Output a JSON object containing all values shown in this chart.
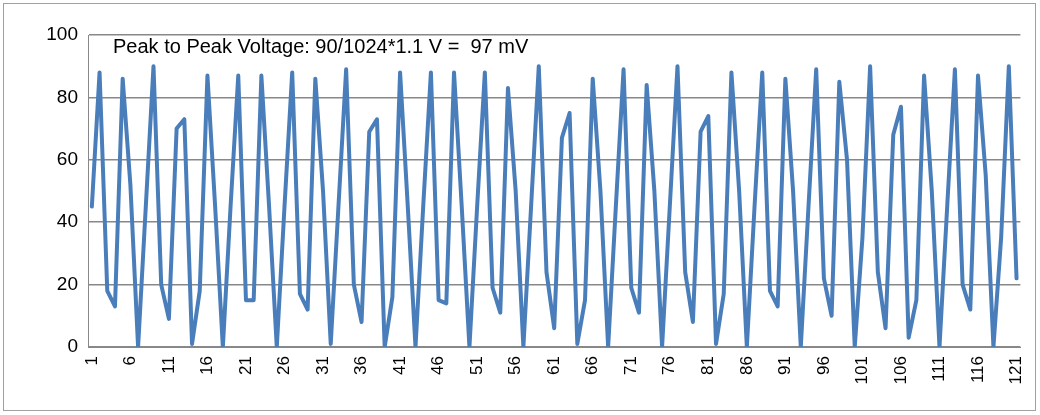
{
  "chart_data": {
    "type": "line",
    "annotations": [
      "Peak to Peak Voltage: 90/1024*1.1 V =  97 mV"
    ],
    "categories": [
      "1",
      null,
      null,
      null,
      null,
      "6",
      null,
      null,
      null,
      null,
      "11",
      null,
      null,
      null,
      null,
      "16",
      null,
      null,
      null,
      null,
      "21",
      null,
      null,
      null,
      null,
      "26",
      null,
      null,
      null,
      null,
      "31",
      null,
      null,
      null,
      null,
      "36",
      null,
      null,
      null,
      null,
      "41",
      null,
      null,
      null,
      null,
      "46",
      null,
      null,
      null,
      null,
      "51",
      null,
      null,
      null,
      null,
      "56",
      null,
      null,
      null,
      null,
      "61",
      null,
      null,
      null,
      null,
      "66",
      null,
      null,
      null,
      null,
      "71",
      null,
      null,
      null,
      null,
      "76",
      null,
      null,
      null,
      null,
      "81",
      null,
      null,
      null,
      null,
      "86",
      null,
      null,
      null,
      null,
      "91",
      null,
      null,
      null,
      null,
      "96",
      null,
      null,
      null,
      null,
      "101",
      null,
      null,
      null,
      null,
      "106",
      null,
      null,
      null,
      null,
      "111",
      null,
      null,
      null,
      null,
      "116",
      null,
      null,
      null,
      null,
      "121"
    ],
    "series": [
      {
        "color": "#4a7ebb",
        "values": [
          45,
          88,
          18,
          13,
          86,
          52,
          0,
          45,
          90,
          20,
          9,
          70,
          73,
          1,
          18,
          87,
          45,
          0,
          45,
          87,
          15,
          15,
          87,
          45,
          0,
          45,
          88,
          17,
          12,
          86,
          50,
          1,
          45,
          89,
          20,
          8,
          69,
          73,
          0,
          16,
          88,
          45,
          0,
          45,
          88,
          15,
          14,
          88,
          45,
          0,
          45,
          88,
          19,
          11,
          83,
          50,
          0,
          45,
          90,
          24,
          6,
          67,
          75,
          1,
          15,
          86,
          50,
          0,
          45,
          89,
          19,
          11,
          84,
          50,
          0,
          45,
          90,
          24,
          8,
          69,
          74,
          1,
          17,
          88,
          50,
          0,
          45,
          88,
          18,
          13,
          86,
          50,
          0,
          45,
          89,
          22,
          10,
          85,
          60,
          0,
          35,
          90,
          24,
          6,
          68,
          77,
          3,
          15,
          87,
          50,
          0,
          45,
          89,
          20,
          12,
          87,
          55,
          0,
          35,
          90,
          22
        ]
      }
    ],
    "ylim": [
      0,
      100
    ],
    "yticks": [
      0,
      20,
      40,
      60,
      80,
      100
    ],
    "grid": "y",
    "legend": false,
    "marker": "none",
    "line_style": "solid"
  }
}
